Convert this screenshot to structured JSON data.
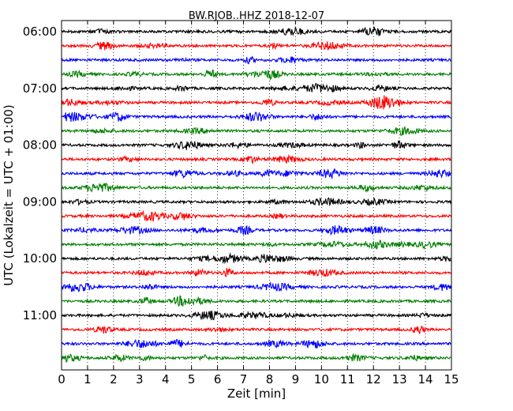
{
  "chart_data": {
    "type": "line",
    "title": "BW.RJOB..HHZ 2018-12-07",
    "xlabel": "Zeit  [min]",
    "ylabel": "UTC (Lokalzeit = UTC + 01:00)",
    "xlim": [
      0,
      15
    ],
    "x_ticks": [
      "0",
      "1",
      "2",
      "3",
      "4",
      "5",
      "6",
      "7",
      "8",
      "9",
      "10",
      "11",
      "12",
      "13",
      "14",
      "15"
    ],
    "y_ticks": [
      "06:00",
      "07:00",
      "08:00",
      "09:00",
      "10:00",
      "11:00"
    ],
    "trace_count": 24,
    "trace_start": "06:00",
    "trace_interval_min": 15,
    "trace_colors": [
      "#000000",
      "#ff0000",
      "#0000ff",
      "#007f00"
    ],
    "grid_x": true,
    "grid_y": false,
    "legend": "none"
  }
}
